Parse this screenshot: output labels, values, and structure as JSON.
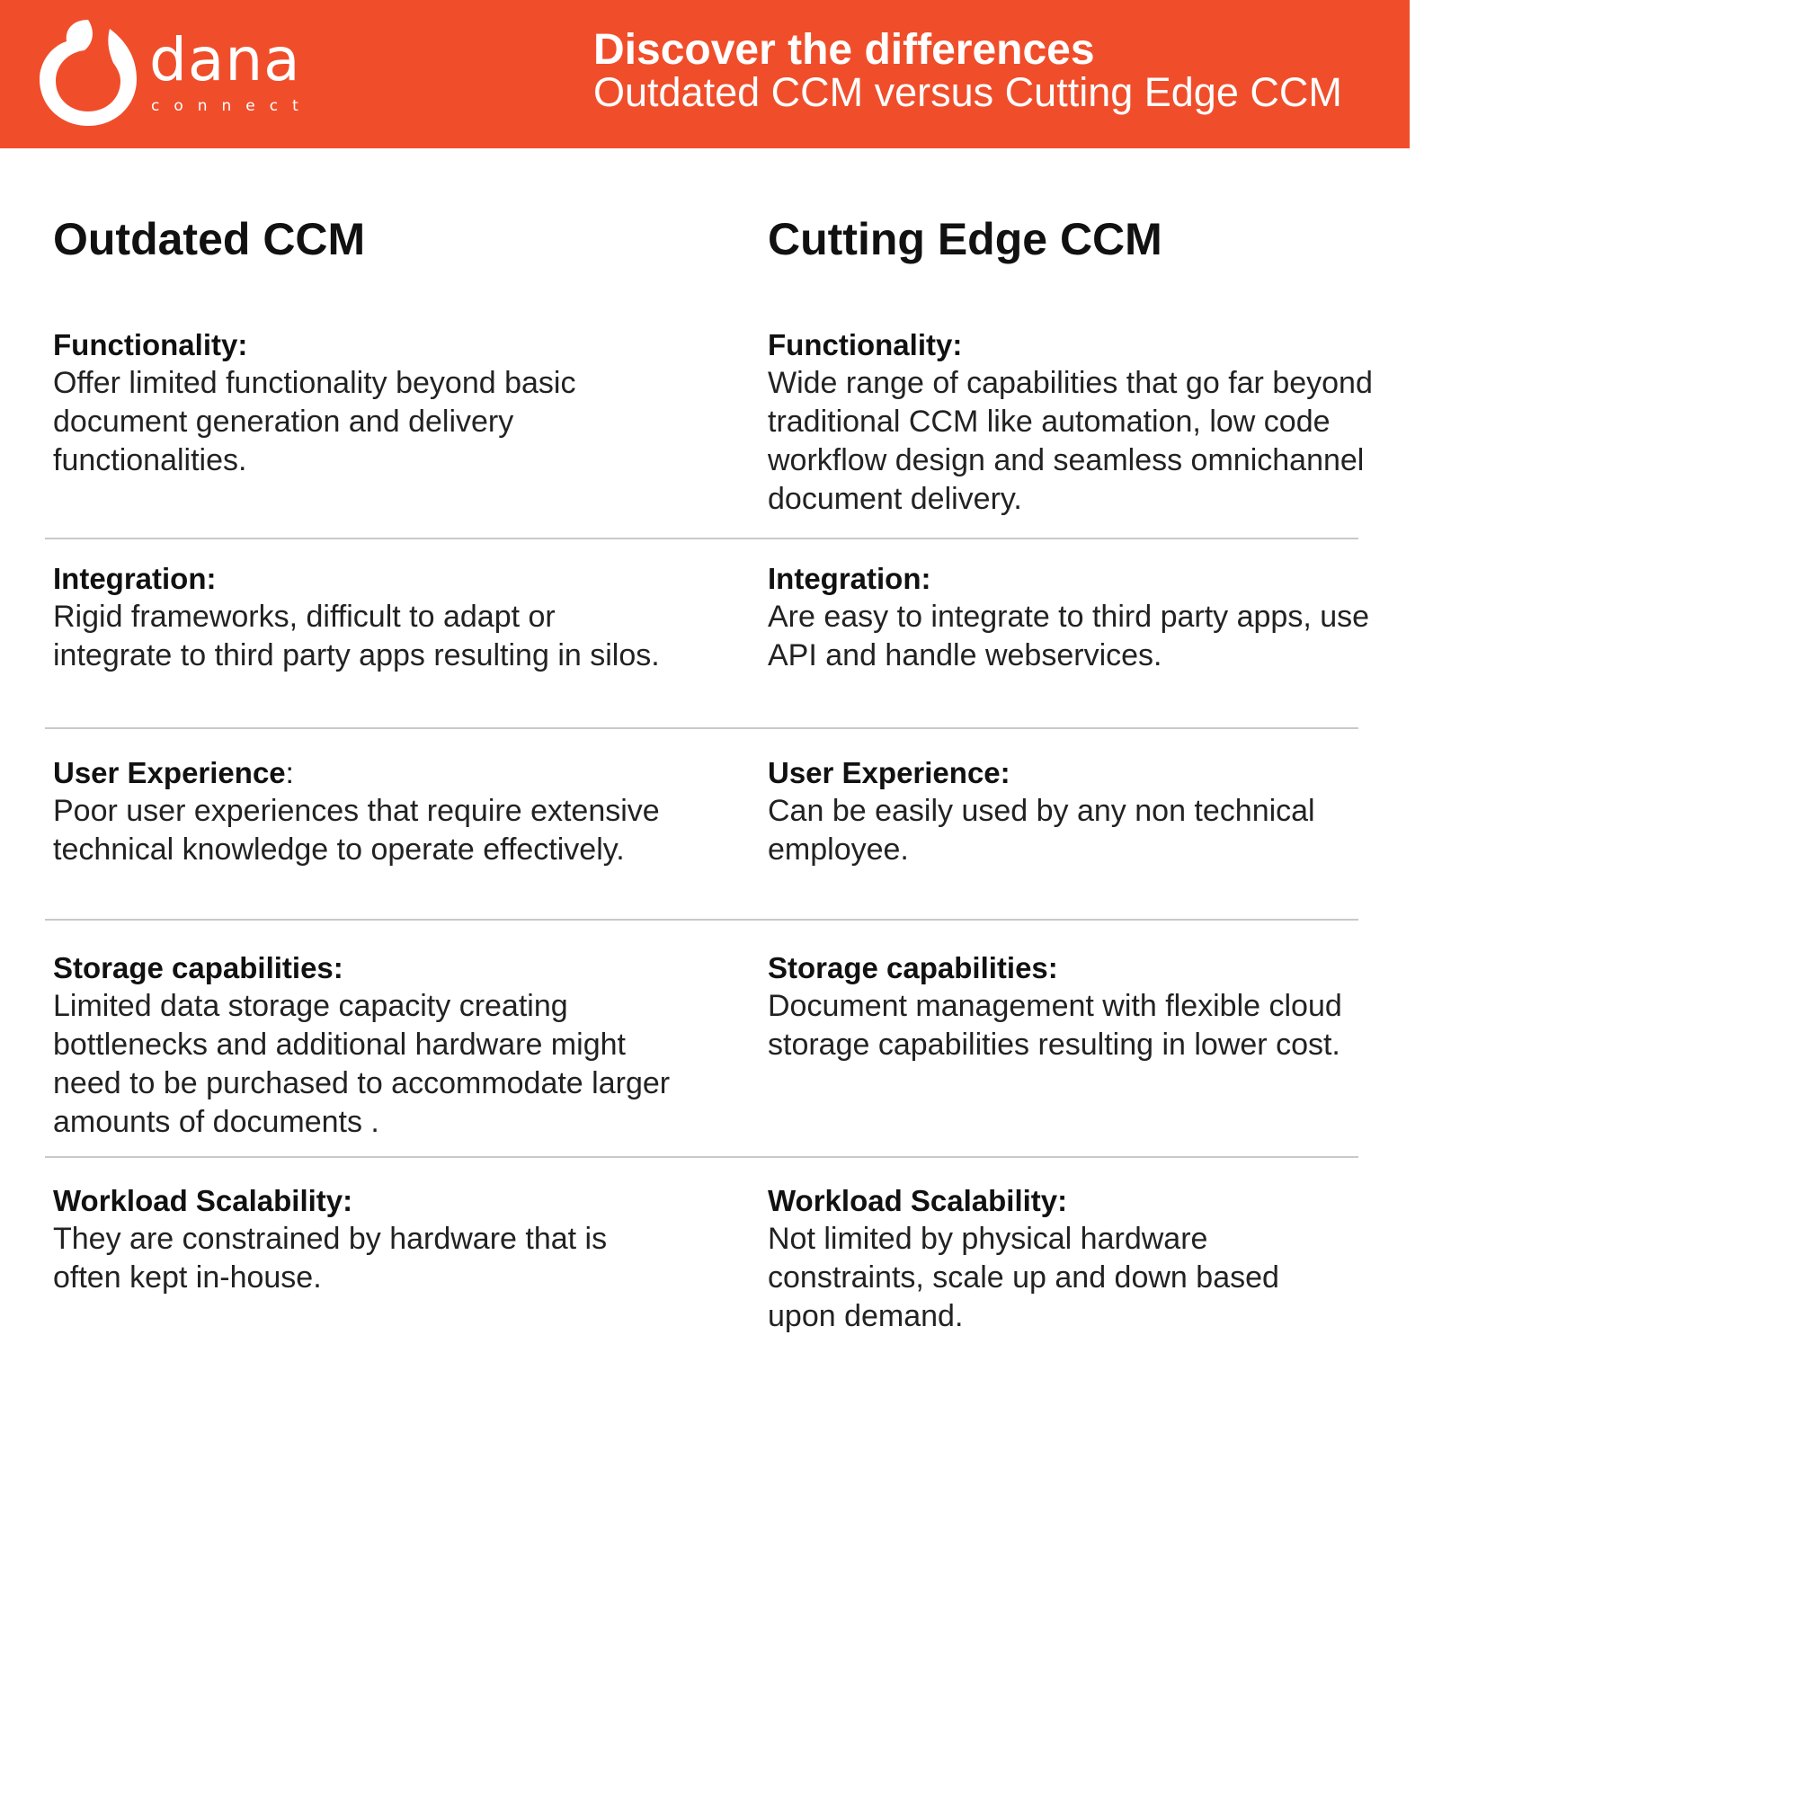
{
  "colors": {
    "brand": "#f04e2b",
    "text": "#111111",
    "divider": "#c9c9c9"
  },
  "logo": {
    "icon": "dana-logo-icon",
    "word": "dana",
    "sub": "connect"
  },
  "header": {
    "title": "Discover the differences",
    "subtitle": "Outdated CCM versus Cutting Edge CCM"
  },
  "columns": {
    "left": {
      "heading": "Outdated CCM"
    },
    "right": {
      "heading": "Cutting Edge CCM"
    }
  },
  "rows": [
    {
      "left": {
        "title": "Functionality:",
        "text": "Offer limited functionality beyond basic document generation and delivery functionalities."
      },
      "right": {
        "title": "Functionality:",
        "text": "Wide range of capabilities that go far beyond traditional CCM like automation, low code workflow design and seamless omnichannel document delivery."
      }
    },
    {
      "left": {
        "title": "Integration:",
        "text": "Rigid frameworks, difficult to adapt or integrate to third party apps resulting in silos."
      },
      "right": {
        "title": "Integration:",
        "text": "Are easy to integrate to third party apps, use API and handle webservices."
      }
    },
    {
      "left": {
        "title": "User Experience",
        "title_suffix": ":",
        "text": "Poor user experiences that require extensive technical knowledge to operate effectively."
      },
      "right": {
        "title": "User Experience:",
        "text": "Can be easily used by any non technical employee."
      }
    },
    {
      "left": {
        "title": "Storage capabilities:",
        "text": "Limited data storage capacity creating bottlenecks and additional hardware might need to be purchased to accommodate larger amounts of documents ."
      },
      "right": {
        "title": "Storage capabilities:",
        "text": "Document management with flexible cloud storage capabilities resulting in lower cost."
      }
    },
    {
      "left": {
        "title": "Workload Scalability:",
        "text": "They are constrained by hardware that is often kept in-house."
      },
      "right": {
        "title": "Workload Scalability:",
        "text": "Not limited by physical hardware constraints, scale up and down based upon demand."
      }
    }
  ]
}
